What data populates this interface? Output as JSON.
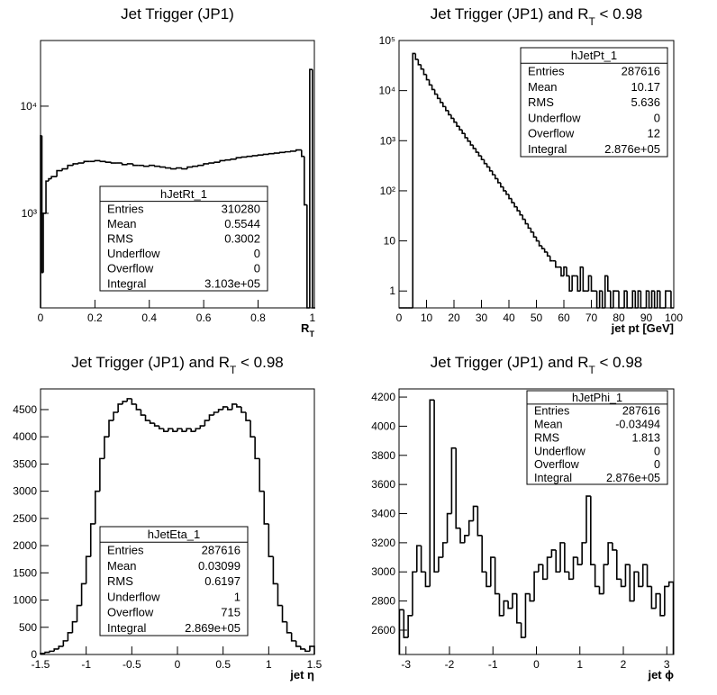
{
  "chart_data": [
    {
      "type": "histogram",
      "title": "Jet Trigger (JP1)",
      "x_label": [
        "R",
        "T"
      ],
      "color": "#000000",
      "log_y": true,
      "xlim": [
        0,
        1.007
      ],
      "ylim": [
        131,
        41000
      ],
      "xticks": [
        0,
        0.2,
        0.4,
        0.6,
        0.8,
        1
      ],
      "yticks": [
        {
          "value": 1000,
          "label": "10³"
        },
        {
          "value": 10000,
          "label": "10⁴"
        }
      ],
      "bins": [
        0,
        0.005,
        0.01,
        0.02,
        0.03,
        0.04,
        0.06,
        0.08,
        0.1,
        0.12,
        0.14,
        0.16,
        0.18,
        0.2,
        0.22,
        0.24,
        0.26,
        0.28,
        0.3,
        0.32,
        0.34,
        0.36,
        0.38,
        0.4,
        0.42,
        0.44,
        0.46,
        0.48,
        0.5,
        0.52,
        0.54,
        0.56,
        0.58,
        0.6,
        0.62,
        0.64,
        0.66,
        0.68,
        0.7,
        0.72,
        0.74,
        0.76,
        0.78,
        0.8,
        0.82,
        0.84,
        0.86,
        0.88,
        0.9,
        0.92,
        0.94,
        0.96,
        0.97,
        0.98,
        0.99,
        1,
        1.01
      ],
      "values": [
        5300,
        280,
        1000,
        2000,
        2100,
        2200,
        2500,
        2600,
        2800,
        2900,
        2950,
        3050,
        3050,
        3100,
        3050,
        3000,
        2950,
        2950,
        2850,
        2900,
        2800,
        2800,
        2750,
        2800,
        2750,
        2700,
        2650,
        2600,
        2650,
        2600,
        2700,
        2750,
        2800,
        2900,
        2950,
        3000,
        3100,
        3150,
        3200,
        3300,
        3350,
        3400,
        3450,
        3500,
        3550,
        3600,
        3650,
        3700,
        3750,
        3800,
        3900,
        3400,
        1200,
        130,
        22000,
        0
      ],
      "stats": {
        "name": "hJetRt_1",
        "rows": [
          [
            "Entries",
            "310280"
          ],
          [
            "Mean",
            "0.5544"
          ],
          [
            "RMS",
            "0.3002"
          ],
          [
            "Underflow",
            "0"
          ],
          [
            "Overflow",
            "0"
          ],
          [
            "Integral",
            "3.103e+05"
          ]
        ]
      }
    },
    {
      "type": "histogram",
      "title": [
        "Jet Trigger (JP1) and R",
        "T",
        " < 0.98"
      ],
      "x_label": "jet pt [GeV]",
      "color": "#000000",
      "log_y": true,
      "xlim": [
        0,
        100
      ],
      "ylim": [
        0.46,
        100000
      ],
      "xticks": [
        0,
        10,
        20,
        30,
        40,
        50,
        60,
        70,
        80,
        90,
        100
      ],
      "yticks": [
        1,
        10,
        {
          "value": 100,
          "label": "10²"
        },
        {
          "value": 1000,
          "label": "10³"
        },
        {
          "value": 10000,
          "label": "10⁴"
        },
        {
          "value": 100000,
          "label": "10⁵"
        }
      ],
      "bins": [
        0,
        1,
        2,
        3,
        4,
        5,
        6,
        7,
        8,
        9,
        10,
        11,
        12,
        13,
        14,
        15,
        16,
        17,
        18,
        19,
        20,
        21,
        22,
        23,
        24,
        25,
        26,
        27,
        28,
        29,
        30,
        31,
        32,
        33,
        34,
        35,
        36,
        37,
        38,
        39,
        40,
        41,
        42,
        43,
        44,
        45,
        46,
        47,
        48,
        49,
        50,
        51,
        52,
        53,
        54,
        55,
        56,
        57,
        58,
        59,
        60,
        61,
        62,
        63,
        64,
        65,
        66,
        67,
        68,
        69,
        70,
        71,
        72,
        73,
        74,
        75,
        76,
        77,
        78,
        79,
        80,
        81,
        82,
        83,
        84,
        85,
        86,
        87,
        88,
        89,
        90,
        91,
        92,
        93,
        94,
        95,
        96,
        97,
        98,
        99,
        100
      ],
      "values": [
        0,
        0,
        0,
        0,
        0,
        55000,
        42000,
        33000,
        27000,
        21000,
        16500,
        13000,
        10500,
        8500,
        7000,
        5800,
        4800,
        4000,
        3300,
        2800,
        2350,
        1950,
        1650,
        1400,
        1150,
        980,
        820,
        700,
        590,
        500,
        420,
        350,
        300,
        250,
        210,
        175,
        145,
        120,
        100,
        85,
        70,
        58,
        48,
        40,
        33,
        27,
        22,
        18,
        15,
        12,
        10,
        8,
        7,
        6,
        5,
        4,
        4,
        3,
        3,
        2,
        3,
        2,
        1,
        2,
        2,
        1,
        3,
        1,
        1,
        2,
        1,
        1,
        0,
        1,
        0,
        2,
        1,
        0,
        1,
        1,
        0,
        0,
        1,
        0,
        0,
        1,
        0,
        1,
        0,
        0,
        1,
        0,
        1,
        0,
        1,
        0,
        0,
        1,
        1,
        0
      ],
      "stats": {
        "name": "hJetPt_1",
        "rows": [
          [
            "Entries",
            "287616"
          ],
          [
            "Mean",
            "10.17"
          ],
          [
            "RMS",
            "5.636"
          ],
          [
            "Underflow",
            "0"
          ],
          [
            "Overflow",
            "12"
          ],
          [
            "Integral",
            "2.876e+05"
          ]
        ]
      }
    },
    {
      "type": "histogram",
      "title": [
        "Jet Trigger (JP1) and R",
        "T",
        " < 0.98"
      ],
      "x_label": "jet η",
      "color": "#000000",
      "log_y": false,
      "xlim": [
        -1.5,
        1.5
      ],
      "ylim": [
        0,
        4880
      ],
      "xticks": [
        -1.5,
        -1,
        -0.5,
        0,
        0.5,
        1,
        1.5
      ],
      "yticks": [
        0,
        500,
        1000,
        1500,
        2000,
        2500,
        3000,
        3500,
        4000,
        4500
      ],
      "bins": [
        -1.5,
        -1.45,
        -1.4,
        -1.35,
        -1.3,
        -1.25,
        -1.2,
        -1.15,
        -1.1,
        -1.05,
        -1,
        -0.95,
        -0.9,
        -0.85,
        -0.8,
        -0.75,
        -0.7,
        -0.65,
        -0.6,
        -0.55,
        -0.5,
        -0.45,
        -0.4,
        -0.35,
        -0.3,
        -0.25,
        -0.2,
        -0.15,
        -0.1,
        -0.05,
        0,
        0.05,
        0.1,
        0.15,
        0.2,
        0.25,
        0.3,
        0.35,
        0.4,
        0.45,
        0.5,
        0.55,
        0.6,
        0.65,
        0.7,
        0.75,
        0.8,
        0.85,
        0.9,
        0.95,
        1,
        1.05,
        1.1,
        1.15,
        1.2,
        1.25,
        1.3,
        1.35,
        1.4,
        1.45,
        1.5
      ],
      "values": [
        20,
        40,
        60,
        100,
        150,
        250,
        400,
        600,
        900,
        1300,
        1800,
        2400,
        3000,
        3600,
        4000,
        4300,
        4450,
        4600,
        4650,
        4700,
        4600,
        4500,
        4400,
        4300,
        4250,
        4200,
        4150,
        4100,
        4150,
        4100,
        4150,
        4100,
        4150,
        4100,
        4150,
        4200,
        4300,
        4400,
        4450,
        4500,
        4550,
        4500,
        4600,
        4550,
        4450,
        4300,
        4000,
        3600,
        3000,
        2400,
        1800,
        1300,
        900,
        600,
        400,
        250,
        150,
        100,
        60,
        150
      ],
      "stats": {
        "name": "hJetEta_1",
        "rows": [
          [
            "Entries",
            "287616"
          ],
          [
            "Mean",
            "0.03099"
          ],
          [
            "RMS",
            "0.6197"
          ],
          [
            "Underflow",
            "1"
          ],
          [
            "Overflow",
            "715"
          ],
          [
            "Integral",
            "2.869e+05"
          ]
        ]
      }
    },
    {
      "type": "histogram",
      "title": [
        "Jet Trigger (JP1) and R",
        "T",
        " < 0.98"
      ],
      "x_label": "jet ϕ",
      "color": "#000000",
      "log_y": false,
      "xlim": [
        -3.16,
        3.16
      ],
      "ylim": [
        2433,
        4256
      ],
      "xticks": [
        -3,
        -2,
        -1,
        0,
        1,
        2,
        3
      ],
      "yticks": [
        2600,
        2800,
        3000,
        3200,
        3400,
        3600,
        3800,
        4000,
        4200
      ],
      "bins": [
        -3.15,
        -3.05,
        -2.95,
        -2.85,
        -2.75,
        -2.65,
        -2.55,
        -2.45,
        -2.35,
        -2.25,
        -2.15,
        -2.05,
        -1.95,
        -1.85,
        -1.75,
        -1.65,
        -1.55,
        -1.45,
        -1.35,
        -1.25,
        -1.15,
        -1.05,
        -0.95,
        -0.85,
        -0.75,
        -0.65,
        -0.55,
        -0.45,
        -0.35,
        -0.25,
        -0.15,
        -0.05,
        0.05,
        0.15,
        0.25,
        0.35,
        0.45,
        0.55,
        0.65,
        0.75,
        0.85,
        0.95,
        1.05,
        1.15,
        1.25,
        1.35,
        1.45,
        1.55,
        1.65,
        1.75,
        1.85,
        1.95,
        2.05,
        2.15,
        2.25,
        2.35,
        2.45,
        2.55,
        2.65,
        2.75,
        2.85,
        2.95,
        3.05,
        3.15
      ],
      "values": [
        2740,
        2550,
        2700,
        3000,
        3180,
        3000,
        2900,
        4180,
        3000,
        3100,
        3200,
        3400,
        3850,
        3300,
        3200,
        3250,
        3350,
        3450,
        3250,
        3000,
        2900,
        3100,
        2850,
        2700,
        2800,
        2750,
        2850,
        2650,
        2550,
        2850,
        2800,
        3000,
        3050,
        2950,
        3100,
        3150,
        3000,
        3200,
        3000,
        2950,
        3100,
        3050,
        3200,
        3520,
        3050,
        2900,
        2850,
        3050,
        3200,
        3150,
        2950,
        2900,
        3050,
        2800,
        3000,
        2900,
        3050,
        2900,
        2750,
        2850,
        2700,
        2900,
        2930
      ],
      "stats": {
        "name": "hJetPhi_1",
        "rows": [
          [
            "Entries",
            "287616"
          ],
          [
            "Mean",
            "-0.03494"
          ],
          [
            "RMS",
            "1.813"
          ],
          [
            "Underflow",
            "0"
          ],
          [
            "Overflow",
            "0"
          ],
          [
            "Integral",
            "2.876e+05"
          ]
        ]
      }
    }
  ]
}
